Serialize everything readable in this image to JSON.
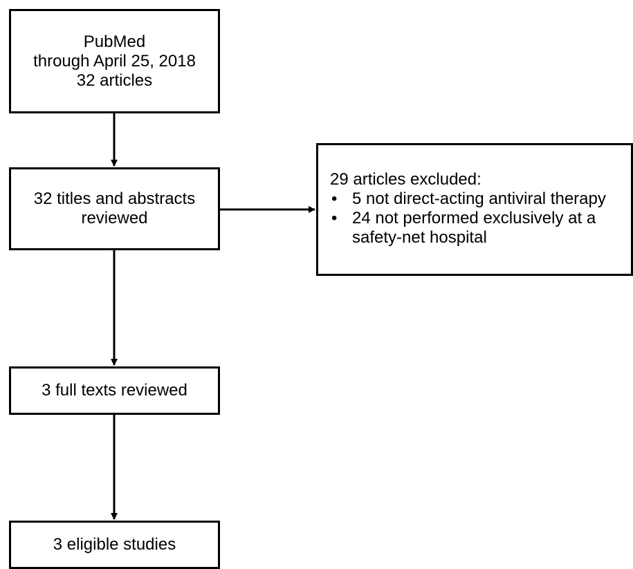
{
  "boxes": {
    "pubmed": {
      "lines": [
        "PubMed",
        "through April 25, 2018",
        "32 articles"
      ]
    },
    "titles": {
      "lines": [
        "32 titles and abstracts",
        "reviewed"
      ]
    },
    "fulltext": {
      "lines": [
        "3 full texts reviewed"
      ]
    },
    "eligible": {
      "lines": [
        "3 eligible studies"
      ]
    },
    "excluded": {
      "heading": "29 articles excluded:",
      "bullet_glyph": "•",
      "items": [
        "5 not direct-acting antiviral therapy",
        "24 not performed exclusively at a safety-net hospital"
      ]
    }
  },
  "colors": {
    "stroke": "#000000",
    "background": "#ffffff"
  }
}
